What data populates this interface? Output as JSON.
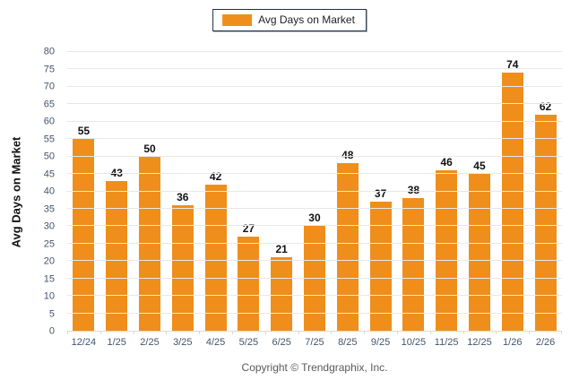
{
  "legend": {
    "label": "Avg Days on Market",
    "swatch_color": "#ef8e1b"
  },
  "chart_data": {
    "type": "bar",
    "categories": [
      "12/24",
      "1/25",
      "2/25",
      "3/25",
      "4/25",
      "5/25",
      "6/25",
      "7/25",
      "8/25",
      "9/25",
      "10/25",
      "11/25",
      "12/25",
      "1/26",
      "2/26"
    ],
    "values": [
      55,
      43,
      50,
      36,
      42,
      27,
      21,
      30,
      48,
      37,
      38,
      46,
      45,
      74,
      62
    ],
    "title": "",
    "xlabel": "",
    "ylabel": "Avg Days on Market",
    "ylim": [
      0,
      80
    ],
    "ytick_step": 5,
    "bar_color": "#ef8e1b",
    "grid": true,
    "legend_position": "top"
  },
  "footer": {
    "copyright": "Copyright © Trendgraphix, Inc."
  }
}
